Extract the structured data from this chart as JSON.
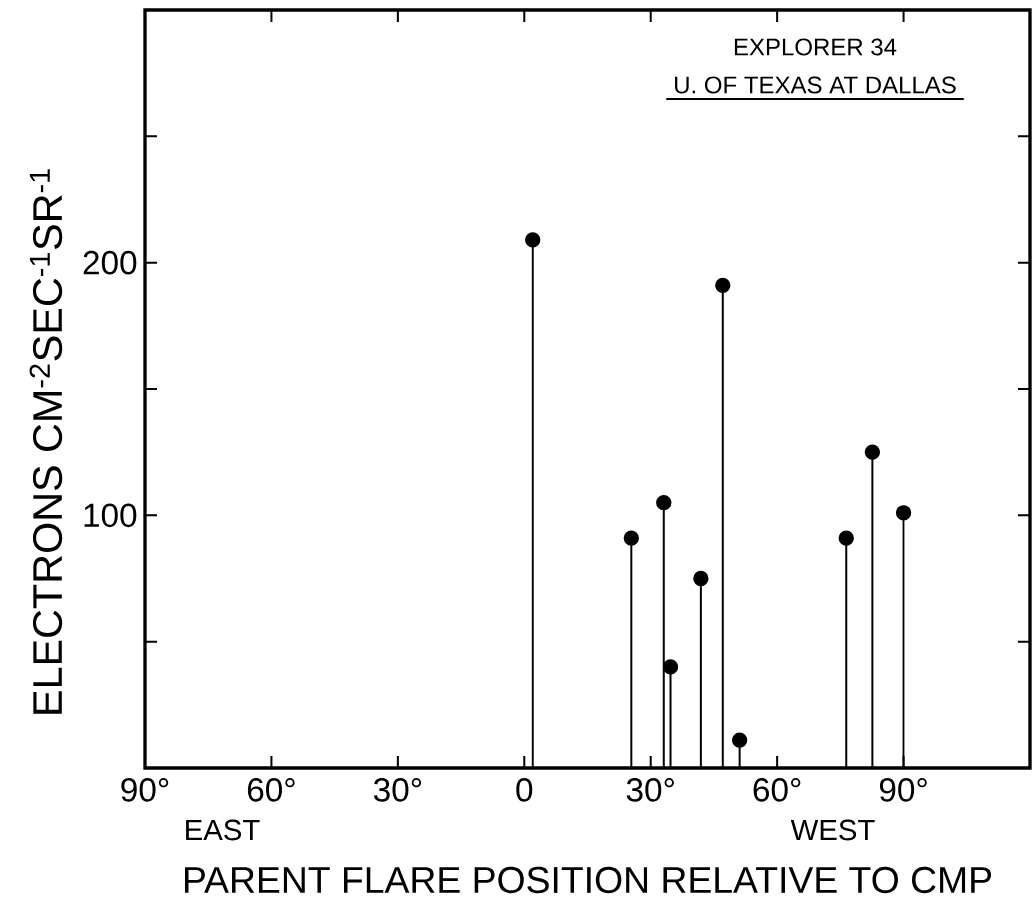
{
  "chart_data": {
    "type": "lollipop",
    "xlabel": "PARENT FLARE POSITION RELATIVE TO CMP",
    "ylabel": "ELECTRONS CM$^{-2}$SEC$^{-1}$SR$^{-1}$",
    "annotations": [
      "EXPLORER 34",
      "U. OF TEXAS AT DALLAS",
      "EAST",
      "WEST"
    ],
    "x": [
      2.0,
      25.4,
      33.1,
      34.7,
      41.9,
      47.1,
      51.1,
      76.4,
      82.6,
      90.0
    ],
    "values": [
      209,
      91,
      105,
      40,
      75,
      191,
      11,
      91,
      125,
      101
    ],
    "color": "#000000",
    "marker": "circle",
    "xlim": [
      -90,
      120
    ],
    "ylim": [
      0,
      300
    ],
    "xticks": [
      {
        "value": -90,
        "label": "90°"
      },
      {
        "value": -60,
        "label": "60°"
      },
      {
        "value": -30,
        "label": "30°"
      },
      0,
      {
        "value": 30,
        "label": "30°"
      },
      {
        "value": 60,
        "label": "60°"
      },
      {
        "value": 90,
        "label": "90°"
      }
    ],
    "yticks": [
      {
        "value": 50,
        "label": null
      },
      100,
      {
        "value": 150,
        "label": null
      },
      200,
      {
        "value": 250,
        "label": null
      }
    ]
  }
}
